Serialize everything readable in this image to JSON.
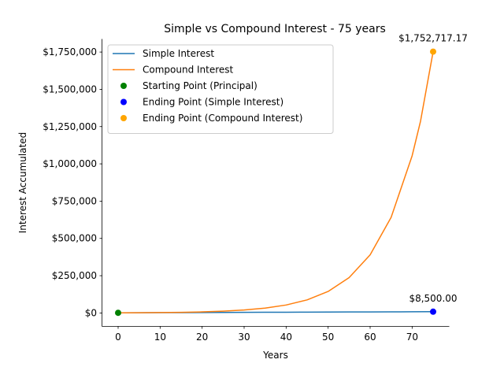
{
  "chart_data": {
    "type": "line",
    "title": "Simple vs Compound Interest - 75 years",
    "xlabel": "Years",
    "ylabel": "Interest Accumulated",
    "xlim": [
      -3.75,
      78.75
    ],
    "ylim": [
      -87612.37,
      1840251.49
    ],
    "x_ticks": [
      0,
      10,
      20,
      30,
      40,
      50,
      60,
      70
    ],
    "x_tick_labels": [
      "0",
      "10",
      "20",
      "30",
      "40",
      "50",
      "60",
      "70"
    ],
    "y_ticks": [
      0,
      250000,
      500000,
      750000,
      1000000,
      1250000,
      1500000,
      1750000
    ],
    "y_tick_labels": [
      "$0",
      "$250,000",
      "$500,000",
      "$750,000",
      "$1,000,000",
      "$1,250,000",
      "$1,500,000",
      "$1,750,000"
    ],
    "grid": false,
    "legend_position": "upper-left",
    "series": [
      {
        "name": "Simple Interest",
        "color": "#1f77b4",
        "x": [
          0,
          5,
          10,
          15,
          20,
          25,
          30,
          35,
          40,
          45,
          50,
          55,
          60,
          65,
          70,
          75
        ],
        "y": [
          1000,
          1500,
          2000,
          2500,
          3000,
          3500,
          4000,
          4500,
          5000,
          5500,
          6000,
          6500,
          7000,
          7500,
          8000,
          8500
        ]
      },
      {
        "name": "Compound Interest",
        "color": "#ff7f0e",
        "x": [
          0,
          5,
          10,
          15,
          20,
          25,
          30,
          35,
          40,
          45,
          50,
          55,
          60,
          65,
          70,
          72,
          75
        ],
        "y": [
          1000,
          1644,
          2703,
          4444,
          7306,
          12012,
          19748,
          32467,
          53378,
          87757,
          144278,
          237202,
          389973,
          641140,
          1054069,
          1286180,
          1752717.17
        ]
      }
    ],
    "points": [
      {
        "name": "Starting Point (Principal)",
        "color": "#008000",
        "x": 0,
        "y": 1000
      },
      {
        "name": "Ending Point (Simple Interest)",
        "color": "#0000ff",
        "x": 75,
        "y": 8500
      },
      {
        "name": "Ending Point (Compound Interest)",
        "color": "#ffa500",
        "x": 75,
        "y": 1752717.17
      }
    ],
    "annotations": [
      {
        "text": "$8,500.00",
        "x": 75,
        "y": 8500
      },
      {
        "text": "$1,752,717.17",
        "x": 75,
        "y": 1752717.17
      }
    ]
  }
}
